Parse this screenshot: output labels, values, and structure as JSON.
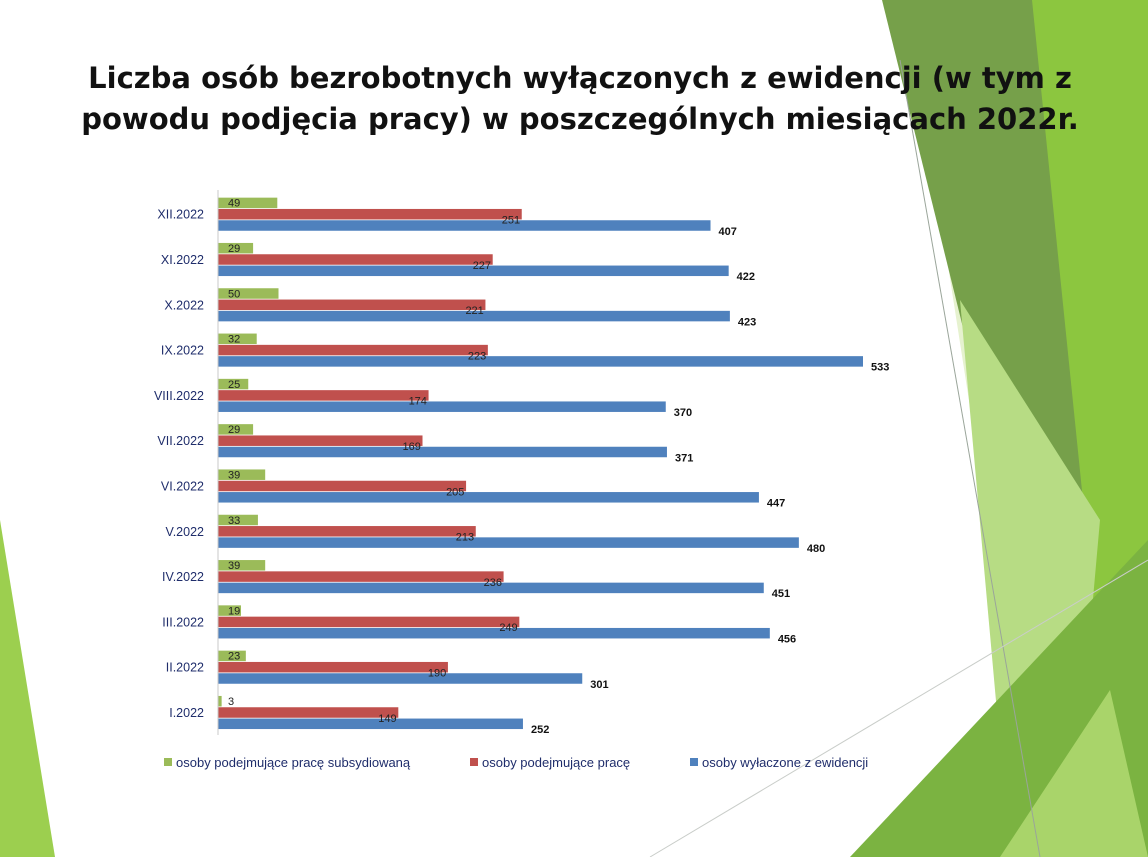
{
  "colors": {
    "subsidized": "#9bbb59",
    "employed": "#c0504d",
    "removed": "#4f81bd",
    "deco_light": "#cde8a4",
    "deco_mid": "#8cc63f",
    "deco_dark": "#6f9a48"
  },
  "chart_data": {
    "type": "bar",
    "orientation": "horizontal",
    "title": "Liczba osób bezrobotnych wyłączonych z ewidencji (w tym z powodu podjęcia pracy) w poszczególnych miesiącach 2022r.",
    "categories": [
      "I.2022",
      "II.2022",
      "III.2022",
      "IV.2022",
      "V.2022",
      "VI.2022",
      "VII.2022",
      "VIII.2022",
      "IX.2022",
      "X.2022",
      "XI.2022",
      "XII.2022"
    ],
    "series": [
      {
        "name": "osoby podejmujące pracę subsydiowaną",
        "color": "#9bbb59",
        "values": [
          3,
          23,
          19,
          39,
          33,
          39,
          29,
          25,
          32,
          50,
          29,
          49
        ]
      },
      {
        "name": "osoby podejmujące pracę",
        "color": "#c0504d",
        "values": [
          149,
          190,
          249,
          236,
          213,
          205,
          169,
          174,
          223,
          221,
          227,
          251
        ]
      },
      {
        "name": "osoby wyłaczone z ewidencji",
        "color": "#4f81bd",
        "values": [
          252,
          301,
          456,
          451,
          480,
          447,
          371,
          370,
          533,
          423,
          422,
          407
        ]
      }
    ],
    "xlim": [
      0,
      600
    ],
    "grid": false,
    "legend_position": "bottom",
    "data_labels": true
  }
}
